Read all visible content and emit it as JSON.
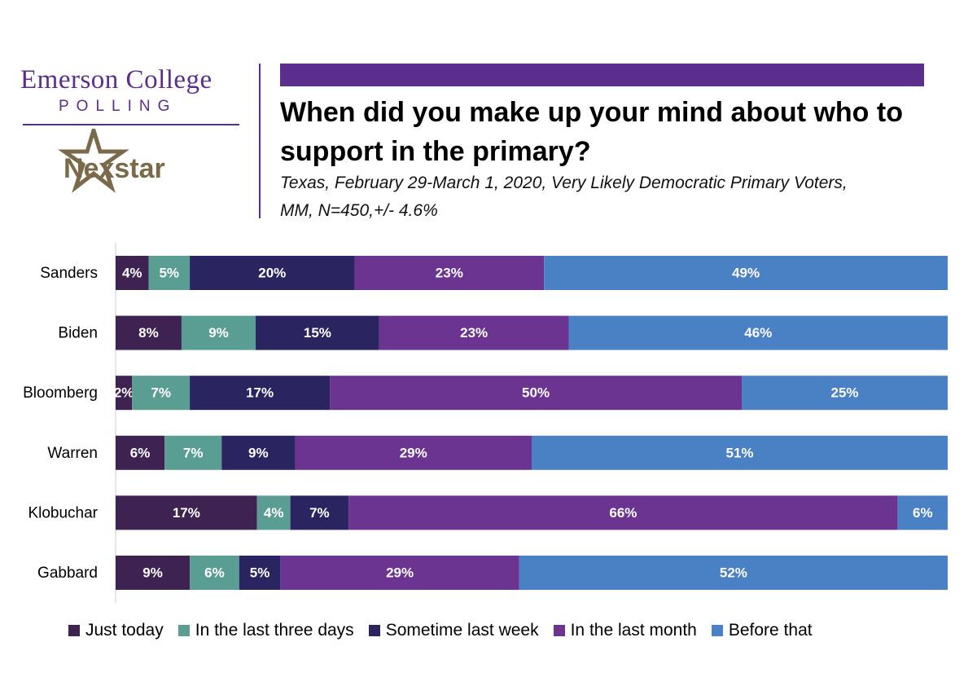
{
  "logo": {
    "org_name": "Emerson College",
    "org_sub": "POLLING",
    "partner": "Nexstar"
  },
  "header": {
    "title": "When did you make up your mind about who to support in the primary?",
    "subtitle_line1": "Texas, February 29-March 1, 2020, Very Likely Democratic Primary Voters,",
    "subtitle_line2": "MM,  N=450,+/-  4.6%"
  },
  "colors": {
    "brand_purple": "#5b2d8c",
    "just_today": "#3e2252",
    "last_three_days": "#5a9e93",
    "last_week": "#2a2560",
    "last_month": "#6a3490",
    "before_that": "#4a80c4"
  },
  "chart_data": {
    "type": "bar",
    "orientation": "horizontal",
    "stacked": true,
    "categories": [
      "Sanders",
      "Biden",
      "Bloomberg",
      "Warren",
      "Klobuchar",
      "Gabbard"
    ],
    "series": [
      {
        "name": "Just today",
        "values": [
          4,
          8,
          2,
          6,
          17,
          9
        ],
        "labels": [
          "4%",
          "8%",
          "2%",
          "6%",
          "17%",
          "9%"
        ],
        "color": "#3e2252"
      },
      {
        "name": "In the last three days",
        "values": [
          5,
          9,
          7,
          7,
          4,
          6
        ],
        "labels": [
          "5%",
          "9%",
          "7%",
          "7%",
          "4%",
          "6%"
        ],
        "color": "#5a9e93"
      },
      {
        "name": "Sometime last week",
        "values": [
          20,
          15,
          17,
          9,
          7,
          5
        ],
        "labels": [
          "20%",
          "15%",
          "17%",
          "9%",
          "7%",
          "5%"
        ],
        "color": "#2a2560"
      },
      {
        "name": "In the last month",
        "values": [
          23,
          23,
          50,
          29,
          66,
          29
        ],
        "labels": [
          "23%",
          "23%",
          "50%",
          "29%",
          "66%",
          "29%"
        ],
        "color": "#6a3490"
      },
      {
        "name": "Before that",
        "values": [
          49,
          46,
          25,
          51,
          6,
          52
        ],
        "labels": [
          "49%",
          "46%",
          "25%",
          "51%",
          "6%",
          "52%"
        ],
        "color": "#4a80c4"
      }
    ],
    "legend_position": "bottom",
    "grid": false
  }
}
